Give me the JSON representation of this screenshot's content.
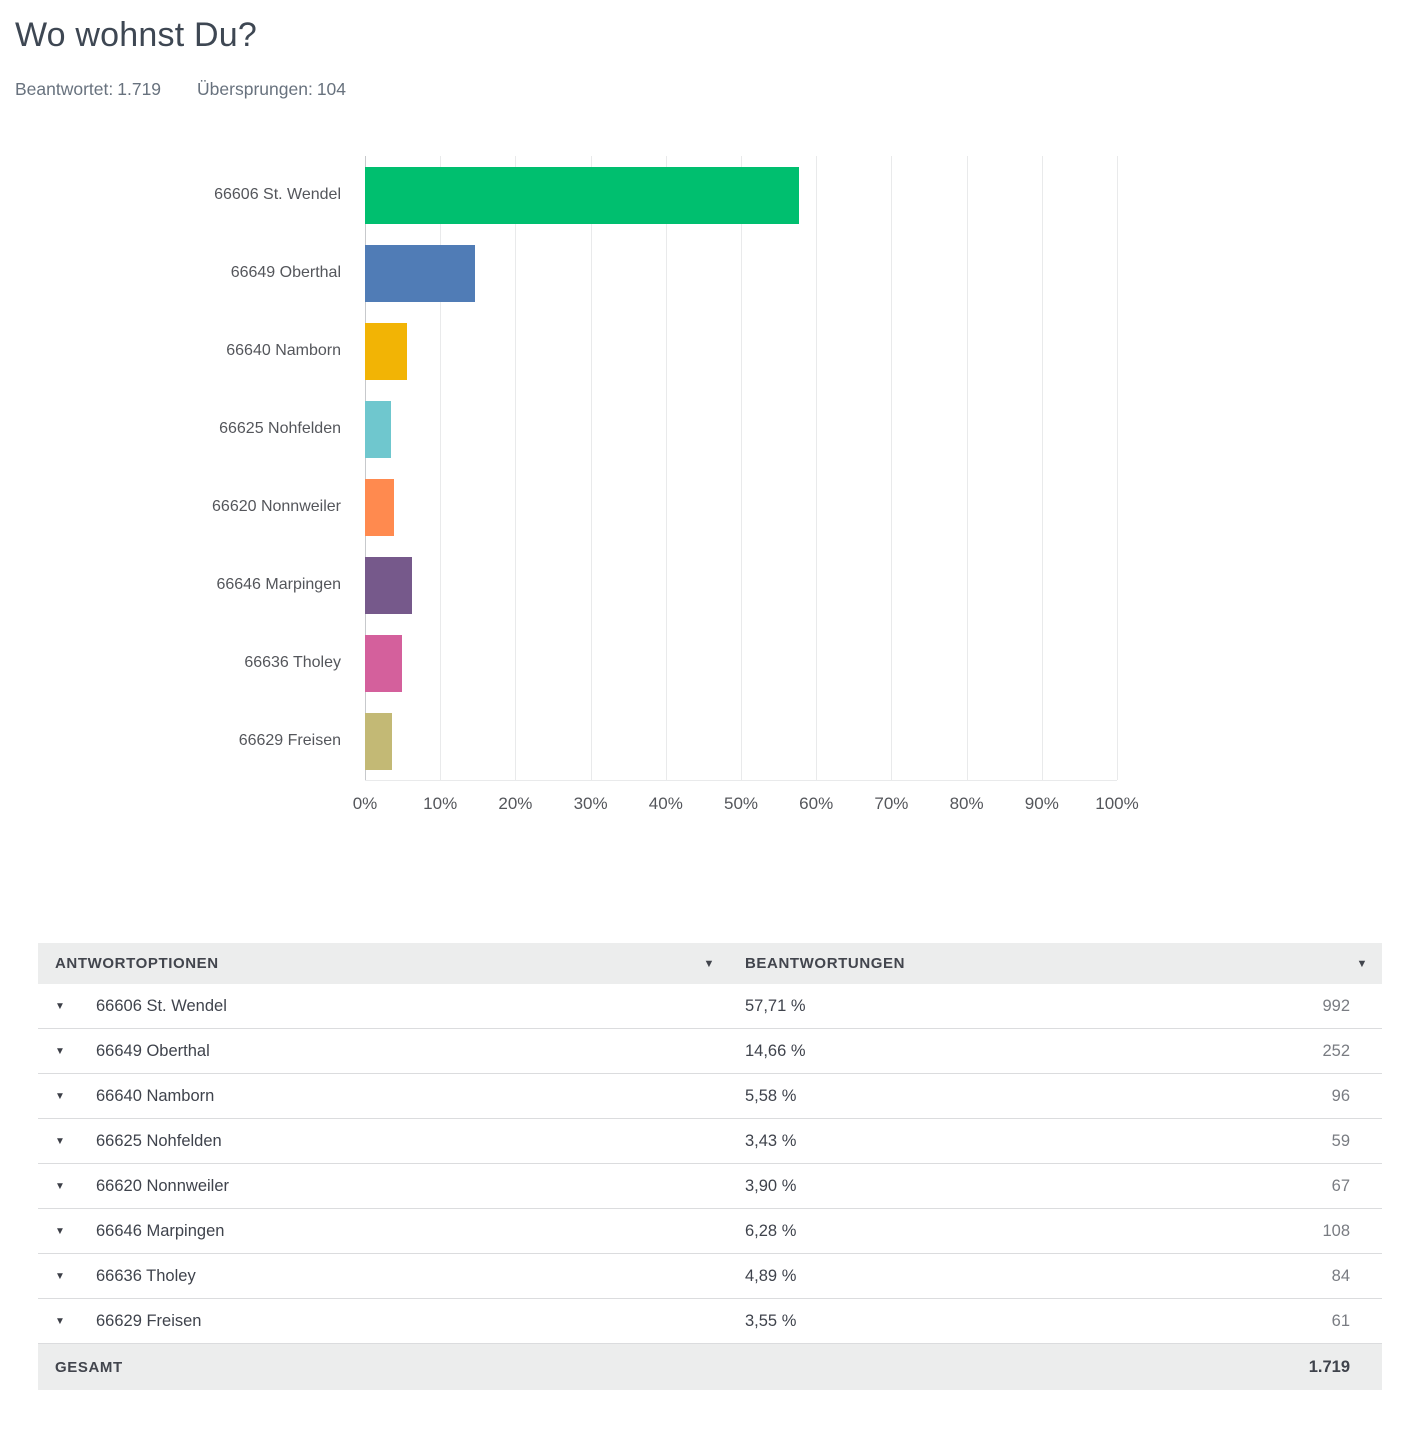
{
  "page": {
    "title": "Wo wohnst Du?",
    "answered_label": "Beantwortet:",
    "answered_value": "1.719",
    "skipped_label": "Übersprungen:",
    "skipped_value": "104"
  },
  "chart_data": {
    "type": "bar",
    "orientation": "horizontal",
    "categories": [
      "66606 St. Wendel",
      "66649 Oberthal",
      "66640 Namborn",
      "66625 Nohfelden",
      "66620 Nonnweiler",
      "66646 Marpingen",
      "66636 Tholey",
      "66629 Freisen"
    ],
    "values": [
      57.71,
      14.66,
      5.58,
      3.43,
      3.9,
      6.28,
      4.89,
      3.55
    ],
    "counts": [
      992,
      252,
      96,
      59,
      67,
      108,
      84,
      61
    ],
    "bar_colors": [
      "#00BF6F",
      "#507CB6",
      "#F2B405",
      "#6FC7CE",
      "#FF8A4F",
      "#76598B",
      "#D4609C",
      "#C3B975"
    ],
    "xlabel": "",
    "ylabel": "",
    "xlim": [
      0,
      100
    ],
    "x_ticks": [
      "0%",
      "10%",
      "20%",
      "30%",
      "40%",
      "50%",
      "60%",
      "70%",
      "80%",
      "90%",
      "100%"
    ],
    "grid": true,
    "legend": false
  },
  "table": {
    "options_header": "ANTWORTOPTIONEN",
    "answers_header": "BEANTWORTUNGEN",
    "rows": [
      {
        "label": "66606 St. Wendel",
        "percent": "57,71 %",
        "count": "992"
      },
      {
        "label": "66649 Oberthal",
        "percent": "14,66 %",
        "count": "252"
      },
      {
        "label": "66640 Namborn",
        "percent": "5,58 %",
        "count": "96"
      },
      {
        "label": "66625 Nohfelden",
        "percent": "3,43 %",
        "count": "59"
      },
      {
        "label": "66620 Nonnweiler",
        "percent": "3,90 %",
        "count": "67"
      },
      {
        "label": "66646 Marpingen",
        "percent": "6,28 %",
        "count": "108"
      },
      {
        "label": "66636 Tholey",
        "percent": "4,89 %",
        "count": "84"
      },
      {
        "label": "66629 Freisen",
        "percent": "3,55 %",
        "count": "61"
      }
    ],
    "footer": {
      "label": "GESAMT",
      "total": "1.719"
    }
  },
  "icons": {
    "sort_caret": "▼",
    "expand_caret": "▼"
  },
  "colors": {
    "title_text": "#3E4753",
    "muted_text": "#68727E",
    "body_text": "#3F434C",
    "axis_text": "#54565B",
    "count_text": "#797C82",
    "header_bg": "#ECEDED",
    "row_divider": "#DBDCDE",
    "gridline": "#E9EAEB",
    "zero_axis": "#C7C9CC"
  }
}
